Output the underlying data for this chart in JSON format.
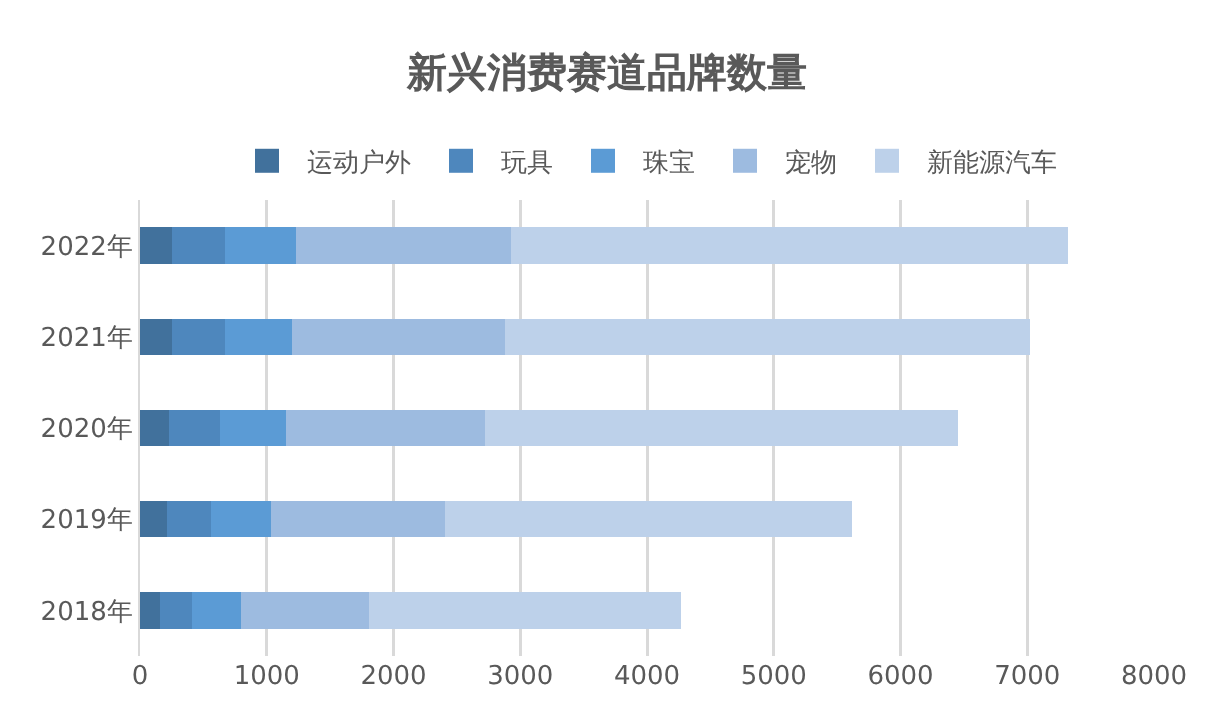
{
  "chart_data": {
    "type": "bar",
    "orientation": "horizontal",
    "stacked": true,
    "title": "新兴消费赛道品牌数量",
    "categories": [
      "2022年",
      "2021年",
      "2020年",
      "2019年",
      "2018年"
    ],
    "series": [
      {
        "name": "运动户外",
        "color": "#41719c",
        "values": [
          250,
          250,
          230,
          210,
          160
        ]
      },
      {
        "name": "玩具",
        "color": "#4e87bd",
        "values": [
          420,
          420,
          400,
          350,
          250
        ]
      },
      {
        "name": "珠宝",
        "color": "#5b9bd5",
        "values": [
          560,
          530,
          520,
          470,
          390
        ]
      },
      {
        "name": "宠物",
        "color": "#9dbbe0",
        "values": [
          1700,
          1680,
          1570,
          1380,
          1010
        ]
      },
      {
        "name": "新能源汽车",
        "color": "#bdd1ea",
        "values": [
          4390,
          4140,
          3730,
          3210,
          2460
        ]
      }
    ],
    "xlim": [
      0,
      8000
    ],
    "xticks": [
      0,
      1000,
      2000,
      3000,
      4000,
      5000,
      6000,
      7000,
      8000
    ],
    "grid": "x",
    "legend": "top"
  }
}
